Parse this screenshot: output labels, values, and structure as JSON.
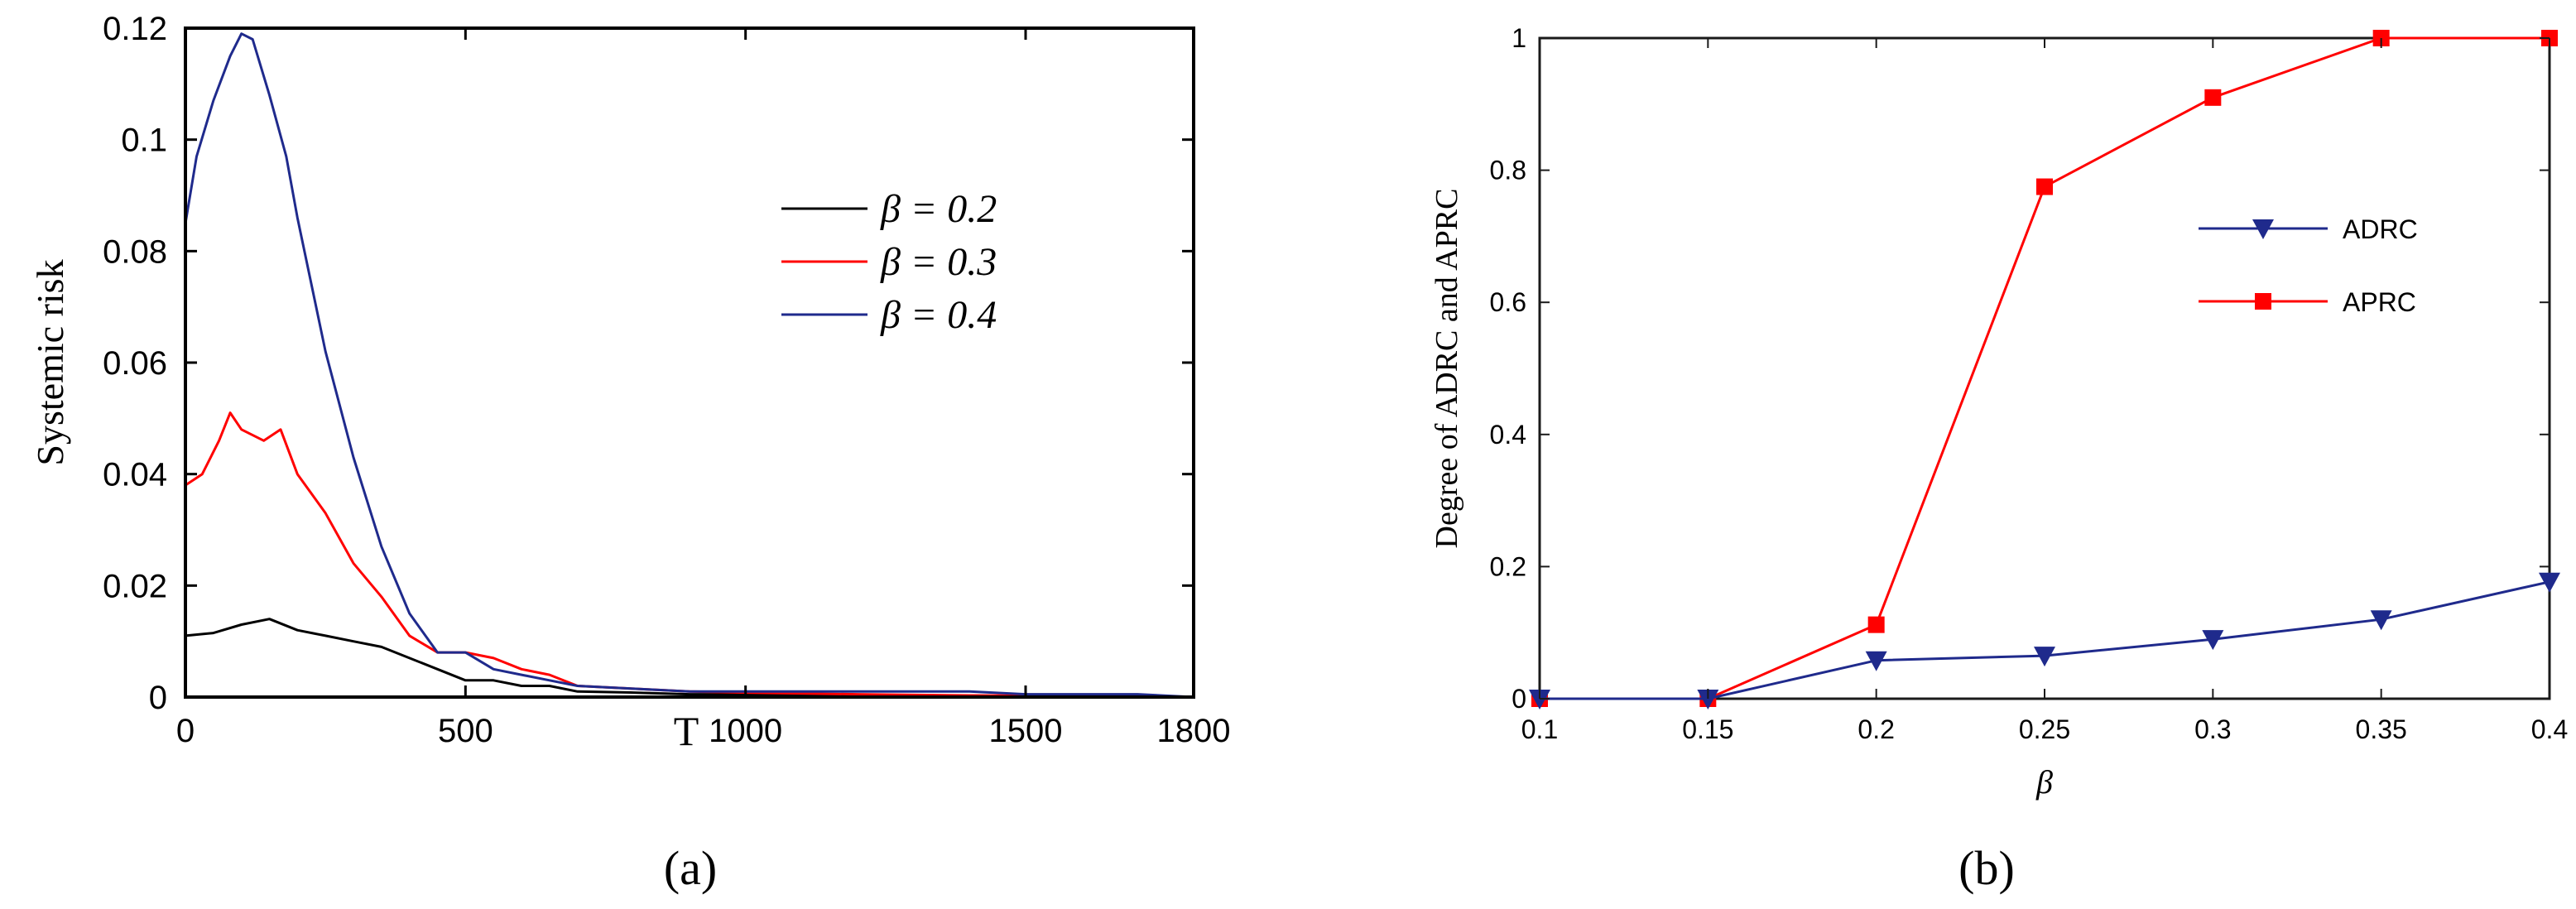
{
  "panels": {
    "a_label": "(a)",
    "b_label": "(b)"
  },
  "chart_data": [
    {
      "type": "line",
      "xlabel": "T",
      "ylabel": "Systemic risk",
      "xlim": [
        0,
        1800
      ],
      "ylim": [
        0,
        0.12
      ],
      "xticks": [
        "0",
        "500",
        "1000",
        "1500",
        "1800"
      ],
      "yticks": [
        "0",
        "0.02",
        "0.04",
        "0.06",
        "0.08",
        "0.1",
        "0.12"
      ],
      "grid": false,
      "legend_position": "top-right",
      "series": [
        {
          "name": "β = 0.2",
          "color": "#000000",
          "x": [
            0,
            50,
            100,
            150,
            200,
            250,
            300,
            350,
            400,
            450,
            500,
            550,
            600,
            650,
            700,
            800,
            900,
            1000,
            1200,
            1400,
            1600,
            1800
          ],
          "y": [
            0.011,
            0.0115,
            0.013,
            0.014,
            0.012,
            0.011,
            0.01,
            0.009,
            0.007,
            0.005,
            0.003,
            0.003,
            0.002,
            0.002,
            0.001,
            0.0008,
            0.0005,
            0.0005,
            0.0003,
            0.0002,
            0.0001,
            0
          ]
        },
        {
          "name": "β = 0.3",
          "color": "#ff0000",
          "x": [
            0,
            30,
            60,
            80,
            100,
            140,
            170,
            200,
            250,
            300,
            350,
            400,
            450,
            500,
            550,
            600,
            650,
            700,
            800,
            900,
            1000,
            1200,
            1400,
            1600,
            1800
          ],
          "y": [
            0.038,
            0.04,
            0.046,
            0.051,
            0.048,
            0.046,
            0.048,
            0.04,
            0.033,
            0.024,
            0.018,
            0.011,
            0.008,
            0.008,
            0.007,
            0.005,
            0.004,
            0.002,
            0.0015,
            0.001,
            0.0008,
            0.0005,
            0.0003,
            0.0002,
            0
          ]
        },
        {
          "name": "β = 0.4",
          "color": "#1f2a8c",
          "x": [
            0,
            20,
            50,
            80,
            100,
            120,
            150,
            180,
            200,
            250,
            300,
            350,
            400,
            450,
            500,
            550,
            600,
            650,
            700,
            800,
            900,
            1000,
            1100,
            1200,
            1300,
            1400,
            1500,
            1600,
            1700,
            1800
          ],
          "y": [
            0.085,
            0.097,
            0.107,
            0.115,
            0.119,
            0.118,
            0.108,
            0.097,
            0.086,
            0.062,
            0.043,
            0.027,
            0.015,
            0.008,
            0.008,
            0.005,
            0.004,
            0.003,
            0.002,
            0.0015,
            0.001,
            0.001,
            0.001,
            0.001,
            0.001,
            0.001,
            0.0005,
            0.0005,
            0.0005,
            0
          ]
        }
      ]
    },
    {
      "type": "line",
      "xlabel": "β",
      "ylabel": "Degree of ADRC and APRC",
      "xlim": [
        0.1,
        0.4
      ],
      "ylim": [
        0,
        1
      ],
      "xticks": [
        "0.1",
        "0.15",
        "0.2",
        "0.25",
        "0.3",
        "0.35",
        "0.4"
      ],
      "yticks": [
        "0",
        "0.2",
        "0.4",
        "0.6",
        "0.8",
        "1"
      ],
      "grid": false,
      "legend_position": "right",
      "categories": [
        0.1,
        0.15,
        0.2,
        0.25,
        0.3,
        0.35,
        0.4
      ],
      "series": [
        {
          "name": "ADRC",
          "color": "#1f2a8c",
          "marker": "triangle-down",
          "values": [
            0,
            0,
            0.058,
            0.065,
            0.09,
            0.12,
            0.177
          ]
        },
        {
          "name": "APRC",
          "color": "#ff0000",
          "marker": "square",
          "values": [
            0,
            0,
            0.112,
            0.775,
            0.91,
            1.0,
            1.0
          ]
        }
      ]
    }
  ]
}
